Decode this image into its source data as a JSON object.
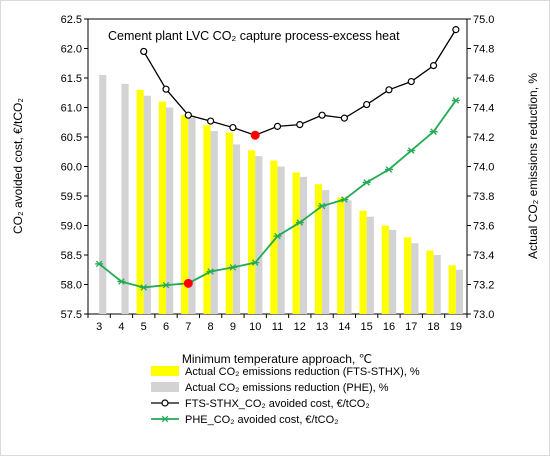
{
  "chart_data": {
    "type": "bar",
    "title": "Cement plant LVC CO₂ capture process-excess heat",
    "xlabel": "Minimum temperature approach, ℃",
    "ylabel_left": "CO₂ avoided cost, €/tCO₂",
    "ylabel_right": "Actual CO₂ emissions reduction, %",
    "x": [
      3,
      4,
      5,
      6,
      7,
      8,
      9,
      10,
      11,
      12,
      13,
      14,
      15,
      16,
      17,
      18,
      19
    ],
    "ylim_left": [
      57.5,
      62.5
    ],
    "yticks_left": [
      "57.5",
      "58.0",
      "58.5",
      "59.0",
      "59.5",
      "60.0",
      "60.5",
      "61.0",
      "61.5",
      "62.0",
      "62.5"
    ],
    "ylim_right": [
      73.0,
      75.0
    ],
    "yticks_right": [
      "73.0",
      "73.2",
      "73.4",
      "73.6",
      "73.8",
      "74.0",
      "74.2",
      "74.4",
      "74.6",
      "74.8",
      "75.0"
    ],
    "grid": false,
    "legend_position": "bottom",
    "series": [
      {
        "name": "Actual CO₂ emissions reduction (FTS-STHX), %",
        "type": "bar",
        "axis": "right",
        "color": "#ffff00",
        "values": [
          null,
          null,
          74.52,
          74.44,
          74.35,
          74.28,
          74.23,
          74.11,
          74.04,
          73.96,
          73.88,
          73.79,
          73.7,
          73.6,
          73.52,
          73.43,
          73.33
        ]
      },
      {
        "name": "Actual CO₂ emissions reduction (PHE), %",
        "type": "bar",
        "axis": "right",
        "color": "#d3d3d3",
        "values": [
          74.62,
          74.56,
          74.48,
          74.4,
          74.33,
          74.24,
          74.15,
          74.07,
          74.0,
          73.93,
          73.84,
          73.77,
          73.66,
          73.57,
          73.48,
          73.4,
          73.3
        ]
      },
      {
        "name": "FTS-STHX_CO₂ avoided cost, €/tCO₂",
        "type": "line",
        "axis": "left",
        "color": "#000000",
        "marker": "circle-open",
        "values": [
          null,
          null,
          61.95,
          61.31,
          60.87,
          60.77,
          60.66,
          60.53,
          60.68,
          60.71,
          60.87,
          60.82,
          61.05,
          61.3,
          61.44,
          61.71,
          62.32
        ],
        "highlight_index": 7
      },
      {
        "name": "PHE_CO₂ avoided cost, €/tCO₂",
        "type": "line",
        "axis": "left",
        "color": "#22aa55",
        "marker": "asterisk",
        "values": [
          58.35,
          58.05,
          57.95,
          57.99,
          58.02,
          58.22,
          58.29,
          58.37,
          58.82,
          59.05,
          59.33,
          59.44,
          59.73,
          59.95,
          60.27,
          60.59,
          61.12
        ],
        "highlight_index": 4
      }
    ],
    "highlight_color": "#ff0000"
  }
}
